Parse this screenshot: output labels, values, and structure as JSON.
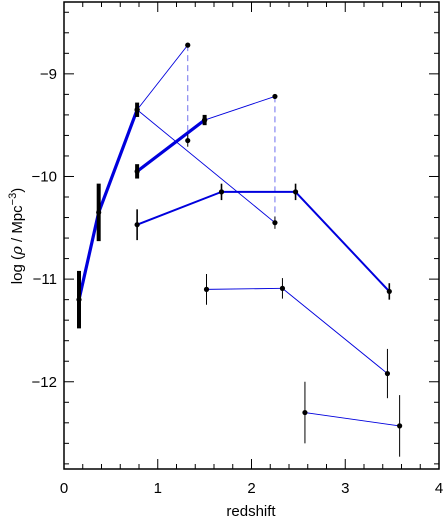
{
  "chart_data": {
    "type": "scatter",
    "xlabel": "redshift",
    "ylabel": "log (ρ / Mpc⁻³)",
    "ylabel_parts": {
      "prefix": "log (",
      "rho": "ρ",
      "unit": " / Mpc",
      "exp": "−3",
      "suffix": ")"
    },
    "xlim": [
      0,
      4
    ],
    "ylim": [
      -12.85,
      -8.3
    ],
    "xticks": [
      0,
      1,
      2,
      3,
      4
    ],
    "xtick_labels": [
      "0",
      "1",
      "2",
      "3",
      "4"
    ],
    "yticks": [
      -12,
      -11,
      -10,
      -9
    ],
    "ytick_labels": [
      "−12",
      "−11",
      "−10",
      "−9"
    ],
    "line_color": "#0000dd",
    "series": [
      {
        "style": "thick",
        "points": [
          {
            "x": 0.16,
            "y": -11.2,
            "err": 0.28
          },
          {
            "x": 0.37,
            "y": -10.35,
            "err": 0.28
          },
          {
            "x": 0.78,
            "y": -9.35,
            "err": 0.07
          }
        ]
      },
      {
        "style": "thick",
        "points": [
          {
            "x": 0.78,
            "y": -9.95,
            "err": 0.07
          },
          {
            "x": 1.5,
            "y": -9.45,
            "err": 0.05
          }
        ]
      },
      {
        "style": "thin",
        "points": [
          {
            "x": 0.78,
            "y": -9.35
          },
          {
            "x": 1.32,
            "y": -8.72
          },
          {
            "x": 1.32,
            "y": -9.65,
            "err": 0.06
          },
          {
            "x": 2.25,
            "y": -10.45,
            "err": 0.06
          },
          {
            "x": 2.25,
            "y": -9.22
          },
          {
            "x": 1.5,
            "y": -9.45
          }
        ],
        "line_order": [
          [
            0,
            1
          ],
          [
            0,
            3
          ],
          [
            5,
            4
          ]
        ],
        "dashed": [
          [
            1,
            2
          ],
          [
            4,
            3
          ]
        ]
      },
      {
        "style": "medium",
        "points": [
          {
            "x": 0.78,
            "y": -10.47,
            "err": 0.15
          },
          {
            "x": 1.68,
            "y": -10.15,
            "err": 0.08
          },
          {
            "x": 2.47,
            "y": -10.15,
            "err": 0.08
          },
          {
            "x": 3.47,
            "y": -11.12,
            "err": 0.08
          }
        ]
      },
      {
        "style": "thin",
        "points": [
          {
            "x": 1.52,
            "y": -11.1,
            "err": 0.15
          },
          {
            "x": 2.33,
            "y": -11.09,
            "err": 0.1
          },
          {
            "x": 3.45,
            "y": -11.92,
            "err": 0.24
          }
        ]
      },
      {
        "style": "thin",
        "points": [
          {
            "x": 2.57,
            "y": -12.3,
            "err": 0.3
          },
          {
            "x": 3.58,
            "y": -12.43,
            "err": 0.3
          }
        ]
      }
    ]
  }
}
